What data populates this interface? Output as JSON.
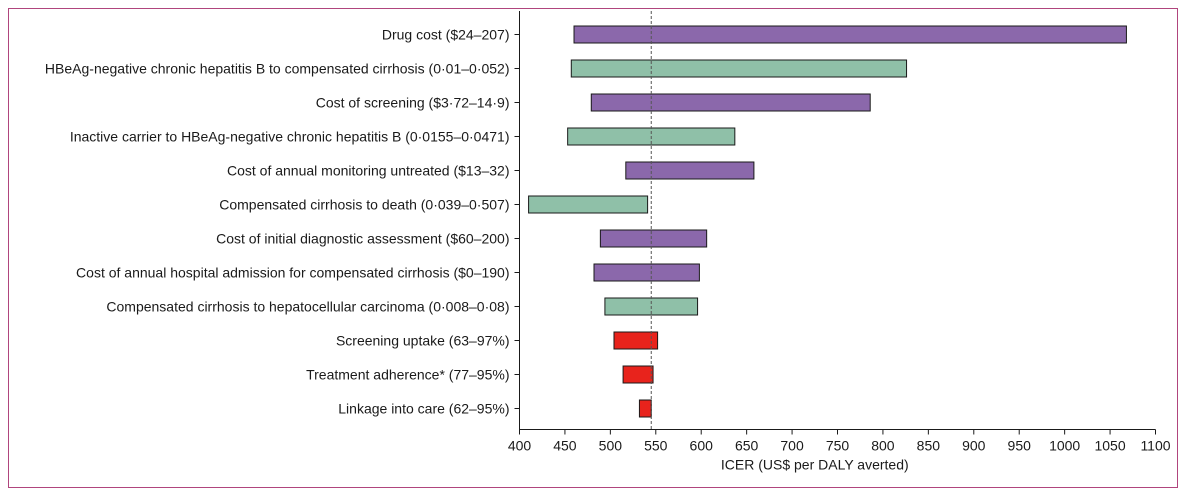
{
  "chart_data": {
    "type": "bar",
    "orientation": "horizontal",
    "chart_kind": "tornado",
    "xlabel": "ICER (US$ per DALY averted)",
    "xlim": [
      400,
      1100
    ],
    "xticks": [
      400,
      450,
      500,
      550,
      600,
      650,
      700,
      750,
      800,
      850,
      900,
      950,
      1000,
      1050,
      1100
    ],
    "baseline": 545,
    "grid": false,
    "legend": "none",
    "colors": {
      "purple": "#8b68ab",
      "green": "#8fc0a8",
      "red": "#e8231c",
      "outline": "#1a1a1a",
      "baseline": "#555555",
      "frame": "#b0457d"
    },
    "categories": [
      "Drug cost ($24–207)",
      "HBeAg-negative chronic hepatitis B to compensated cirrhosis (0·01–0·052)",
      "Cost of screening ($3·72–14·9)",
      "Inactive carrier to HBeAg-negative chronic hepatitis B (0·0155–0·0471)",
      "Cost of annual monitoring untreated ($13–32)",
      "Compensated cirrhosis to death (0·039–0·507)",
      "Cost of initial diagnostic assessment ($60–200)",
      "Cost of annual hospital admission for compensated cirrhosis ($0–190)",
      "Compensated cirrhosis to hepatocellular carcinoma (0·008–0·08)",
      "Screening uptake (63–97%)",
      "Treatment adherence* (77–95%)",
      "Linkage into care (62–95%)"
    ],
    "ranges": [
      [
        460,
        1068
      ],
      [
        457,
        826
      ],
      [
        479,
        786
      ],
      [
        453,
        637
      ],
      [
        517,
        658
      ],
      [
        410,
        541
      ],
      [
        489,
        606
      ],
      [
        482,
        598
      ],
      [
        494,
        596
      ],
      [
        504,
        552
      ],
      [
        514,
        547
      ],
      [
        532,
        545
      ]
    ],
    "bar_colors": [
      "purple",
      "green",
      "purple",
      "green",
      "purple",
      "green",
      "purple",
      "purple",
      "green",
      "red",
      "red",
      "red"
    ]
  }
}
